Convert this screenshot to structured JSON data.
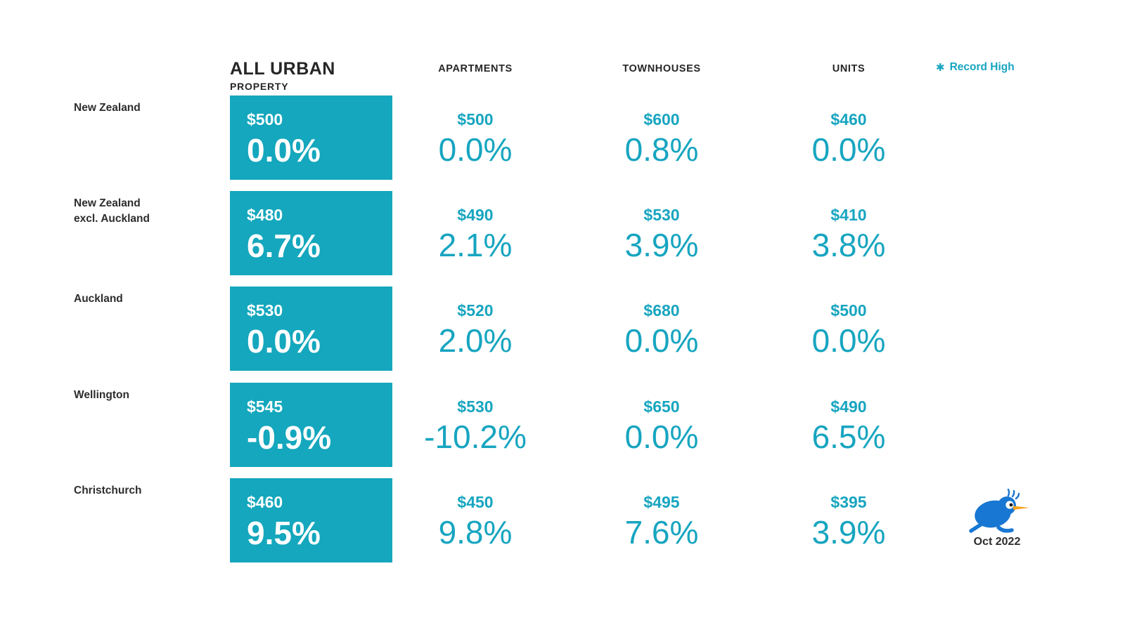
{
  "legend": {
    "marker": "✱",
    "label": "Record High"
  },
  "footer": {
    "date": "Oct 2022",
    "logo_icon": "kiwi-bird"
  },
  "colors": {
    "box_teal": "#14a7bd",
    "value_teal": "#17a5c0",
    "heading_dark": "#262626",
    "label_dark": "#2d2d2d",
    "kiwi_blue": "#1877d2",
    "beak_orange": "#f7a219"
  },
  "chart_data": {
    "type": "table",
    "title": "",
    "columns": [
      {
        "line1": "ALL URBAN",
        "line2": "PROPERTY"
      },
      {
        "line1": "APARTMENTS",
        "line2": ""
      },
      {
        "line1": "TOWNHOUSES",
        "line2": ""
      },
      {
        "line1": "UNITS",
        "line2": ""
      }
    ],
    "rows": [
      {
        "region_line1": "New Zealand",
        "region_line2": "",
        "all_urban": {
          "price": "$500",
          "change": "0.0%"
        },
        "apartments": {
          "price": "$500",
          "change": "0.0%"
        },
        "townhouses": {
          "price": "$600",
          "change": "0.8%"
        },
        "units": {
          "price": "$460",
          "change": "0.0%"
        }
      },
      {
        "region_line1": "New Zealand",
        "region_line2": "excl. Auckland",
        "all_urban": {
          "price": "$480",
          "change": "6.7%"
        },
        "apartments": {
          "price": "$490",
          "change": "2.1%"
        },
        "townhouses": {
          "price": "$530",
          "change": "3.9%"
        },
        "units": {
          "price": "$410",
          "change": "3.8%"
        }
      },
      {
        "region_line1": "Auckland",
        "region_line2": "",
        "all_urban": {
          "price": "$530",
          "change": "0.0%"
        },
        "apartments": {
          "price": "$520",
          "change": "2.0%"
        },
        "townhouses": {
          "price": "$680",
          "change": "0.0%"
        },
        "units": {
          "price": "$500",
          "change": "0.0%"
        }
      },
      {
        "region_line1": "Wellington",
        "region_line2": "",
        "all_urban": {
          "price": "$545",
          "change": "-0.9%"
        },
        "apartments": {
          "price": "$530",
          "change": "-10.2%"
        },
        "townhouses": {
          "price": "$650",
          "change": "0.0%"
        },
        "units": {
          "price": "$490",
          "change": "6.5%"
        }
      },
      {
        "region_line1": "Christchurch",
        "region_line2": "",
        "all_urban": {
          "price": "$460",
          "change": "9.5%"
        },
        "apartments": {
          "price": "$450",
          "change": "9.8%"
        },
        "townhouses": {
          "price": "$495",
          "change": "7.6%"
        },
        "units": {
          "price": "$395",
          "change": "3.9%"
        }
      }
    ]
  }
}
